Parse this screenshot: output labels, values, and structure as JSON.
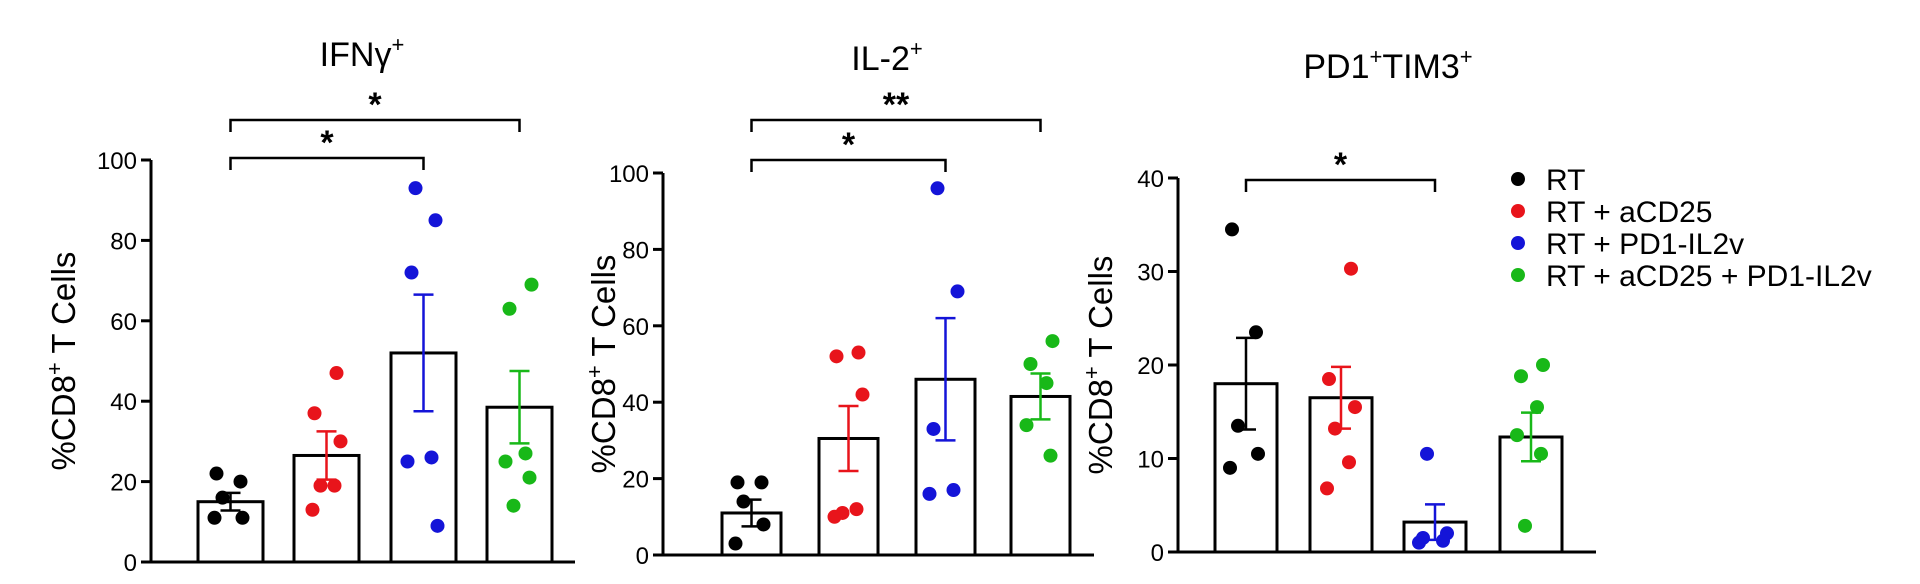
{
  "colors": {
    "RT": "#000000",
    "RT + aCD25": "#e8141b",
    "RT + PD1-IL2v": "#1414d8",
    "RT + aCD25 + PD1-IL2v": "#18b818"
  },
  "legend": {
    "items": [
      {
        "label": "RT",
        "color": "#000000"
      },
      {
        "label": "RT + aCD25",
        "color": "#e8141b"
      },
      {
        "label": "RT + PD1-IL2v",
        "color": "#1414d8"
      },
      {
        "label": "RT + aCD25 + PD1-IL2v",
        "color": "#18b818"
      }
    ]
  },
  "chart_data": [
    {
      "type": "bar",
      "title": {
        "main": "IFNγ",
        "sup": "+"
      },
      "ylabel": {
        "pre": "%CD8",
        "sup": "+",
        "post": " T Cells"
      },
      "ylim": [
        0,
        100
      ],
      "yticks": [
        0,
        20,
        40,
        60,
        80,
        100
      ],
      "categories": [
        "RT",
        "RT + aCD25",
        "RT + PD1-IL2v",
        "RT + aCD25 + PD1-IL2v"
      ],
      "means": [
        15,
        26.5,
        52,
        38.5
      ],
      "sem": [
        2.2,
        6,
        14.5,
        9
      ],
      "points": [
        [
          22,
          20,
          16,
          11,
          11
        ],
        [
          47,
          37,
          30,
          19,
          19,
          13
        ],
        [
          93,
          85,
          72,
          26,
          25,
          9
        ],
        [
          69,
          63,
          27,
          25,
          21,
          14
        ]
      ],
      "significance": [
        {
          "from": 0,
          "to": 2,
          "label": "*"
        },
        {
          "from": 0,
          "to": 3,
          "label": "*"
        }
      ]
    },
    {
      "type": "bar",
      "title": {
        "main": "IL-2",
        "sup": "+"
      },
      "ylabel": {
        "pre": "%CD8",
        "sup": "+",
        "post": " T Cells"
      },
      "ylim": [
        0,
        100
      ],
      "yticks": [
        0,
        20,
        40,
        60,
        80,
        100
      ],
      "categories": [
        "RT",
        "RT + aCD25",
        "RT + PD1-IL2v",
        "RT + aCD25 + PD1-IL2v"
      ],
      "means": [
        11,
        30.5,
        46,
        41.5
      ],
      "sem": [
        3.5,
        8.5,
        16,
        6
      ],
      "points": [
        [
          19,
          19,
          14,
          8,
          3
        ],
        [
          53,
          52,
          42,
          11,
          12,
          10
        ],
        [
          96,
          69,
          33,
          17,
          16
        ],
        [
          56,
          50,
          45,
          34,
          26
        ]
      ],
      "significance": [
        {
          "from": 0,
          "to": 2,
          "label": "*"
        },
        {
          "from": 0,
          "to": 3,
          "label": "**"
        }
      ]
    },
    {
      "type": "bar",
      "title": {
        "main": "PD1",
        "sup": "+",
        "main2": "TIM3",
        "sup2": "+"
      },
      "ylabel": {
        "pre": "%CD8",
        "sup": "+",
        "post": " T Cells"
      },
      "ylim": [
        0,
        40
      ],
      "yticks": [
        0,
        10,
        20,
        30,
        40
      ],
      "categories": [
        "RT",
        "RT + aCD25",
        "RT + PD1-IL2v",
        "RT + aCD25 + PD1-IL2v"
      ],
      "means": [
        18,
        16.5,
        3.2,
        12.3
      ],
      "sem": [
        4.9,
        3.3,
        1.9,
        2.6
      ],
      "points": [
        [
          34.5,
          23.5,
          13.5,
          10.5,
          9
        ],
        [
          30.3,
          18.5,
          15.5,
          13.2,
          9.6,
          6.8
        ],
        [
          10.5,
          2,
          1.5,
          1.2,
          1
        ],
        [
          20,
          18.8,
          15.5,
          12.5,
          10.5,
          2.8
        ]
      ],
      "significance": [
        {
          "from": 0,
          "to": 2,
          "label": "*"
        }
      ]
    }
  ]
}
